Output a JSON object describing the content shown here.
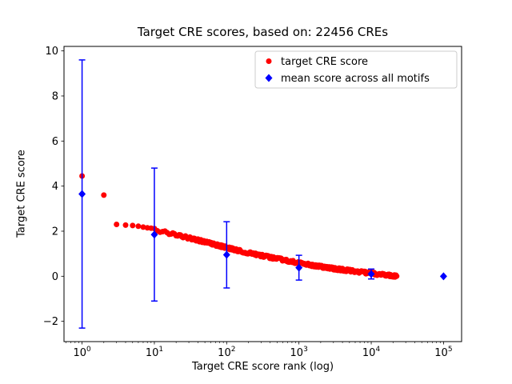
{
  "figure": {
    "background": "#ffffff",
    "text_color": "#000000"
  },
  "chart_data": {
    "type": "scatter",
    "title": "Target CRE scores, based on: 22456 CREs",
    "xlabel": "Target CRE score rank (log)",
    "ylabel": "Target CRE score",
    "x_scale": "log",
    "xlim_log": [
      -0.25,
      5.25
    ],
    "ylim": [
      -2.9,
      10.2
    ],
    "yticks": [
      -2,
      0,
      2,
      4,
      6,
      8,
      10
    ],
    "xtick_exponents": [
      0,
      1,
      2,
      3,
      4,
      5
    ],
    "grid": false,
    "legend": {
      "position": "upper right",
      "entries": [
        {
          "label": "target CRE score",
          "color": "#ff0000",
          "marker": "circle"
        },
        {
          "label": "mean score across all motifs",
          "color": "#0000ff",
          "marker": "diamond"
        }
      ]
    },
    "series": [
      {
        "name": "target CRE score",
        "plot_type": "scatter",
        "color": "#ff0000",
        "marker": "circle",
        "n_points": 22456,
        "anchor_points": [
          [
            1,
            4.45
          ],
          [
            2,
            3.6
          ],
          [
            3,
            2.3
          ],
          [
            4,
            2.27
          ],
          [
            5,
            2.25
          ],
          [
            6,
            2.22
          ],
          [
            7,
            2.18
          ],
          [
            8,
            2.15
          ],
          [
            10,
            2.07
          ],
          [
            12,
            2.0
          ],
          [
            15,
            1.93
          ],
          [
            20,
            1.84
          ],
          [
            30,
            1.7
          ],
          [
            40,
            1.6
          ],
          [
            50,
            1.52
          ],
          [
            70,
            1.4
          ],
          [
            100,
            1.27
          ],
          [
            150,
            1.13
          ],
          [
            200,
            1.04
          ],
          [
            300,
            0.92
          ],
          [
            500,
            0.78
          ],
          [
            700,
            0.69
          ],
          [
            1000,
            0.59
          ],
          [
            1500,
            0.49
          ],
          [
            2000,
            0.43
          ],
          [
            3000,
            0.34
          ],
          [
            5000,
            0.25
          ],
          [
            7000,
            0.19
          ],
          [
            10000,
            0.13
          ],
          [
            15000,
            0.06
          ],
          [
            20000,
            0.02
          ],
          [
            22456,
            0.0
          ]
        ]
      },
      {
        "name": "mean score across all motifs",
        "plot_type": "errorbar",
        "color": "#0000ff",
        "marker": "diamond",
        "x": [
          1,
          10,
          100,
          1000,
          10000,
          100000
        ],
        "y": [
          3.65,
          1.85,
          0.95,
          0.38,
          0.1,
          0.0
        ],
        "yerr": [
          5.95,
          2.95,
          1.47,
          0.55,
          0.22,
          0.05
        ]
      }
    ]
  }
}
